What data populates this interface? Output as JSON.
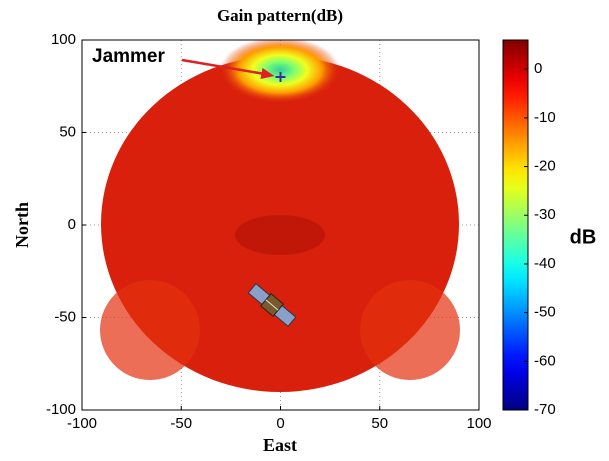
{
  "chart_data": {
    "type": "heatmap",
    "title": "Gain pattern(dB)",
    "x_label": "East",
    "y_label": "North",
    "xlim": [
      -100,
      100
    ],
    "ylim": [
      -100,
      100
    ],
    "xticks": [
      -100,
      -50,
      0,
      50,
      100
    ],
    "yticks": [
      -100,
      -50,
      0,
      50,
      100
    ],
    "grid": true,
    "colormap": "jet",
    "colorbar": {
      "label": "dB",
      "lim": [
        -70,
        6
      ],
      "ticks": [
        0,
        -10,
        -20,
        -30,
        -40,
        -50,
        -60,
        -70
      ]
    },
    "annotations": [
      {
        "text": "Jammer",
        "x": 0,
        "y": 80,
        "color": "#e02020"
      }
    ]
  }
}
